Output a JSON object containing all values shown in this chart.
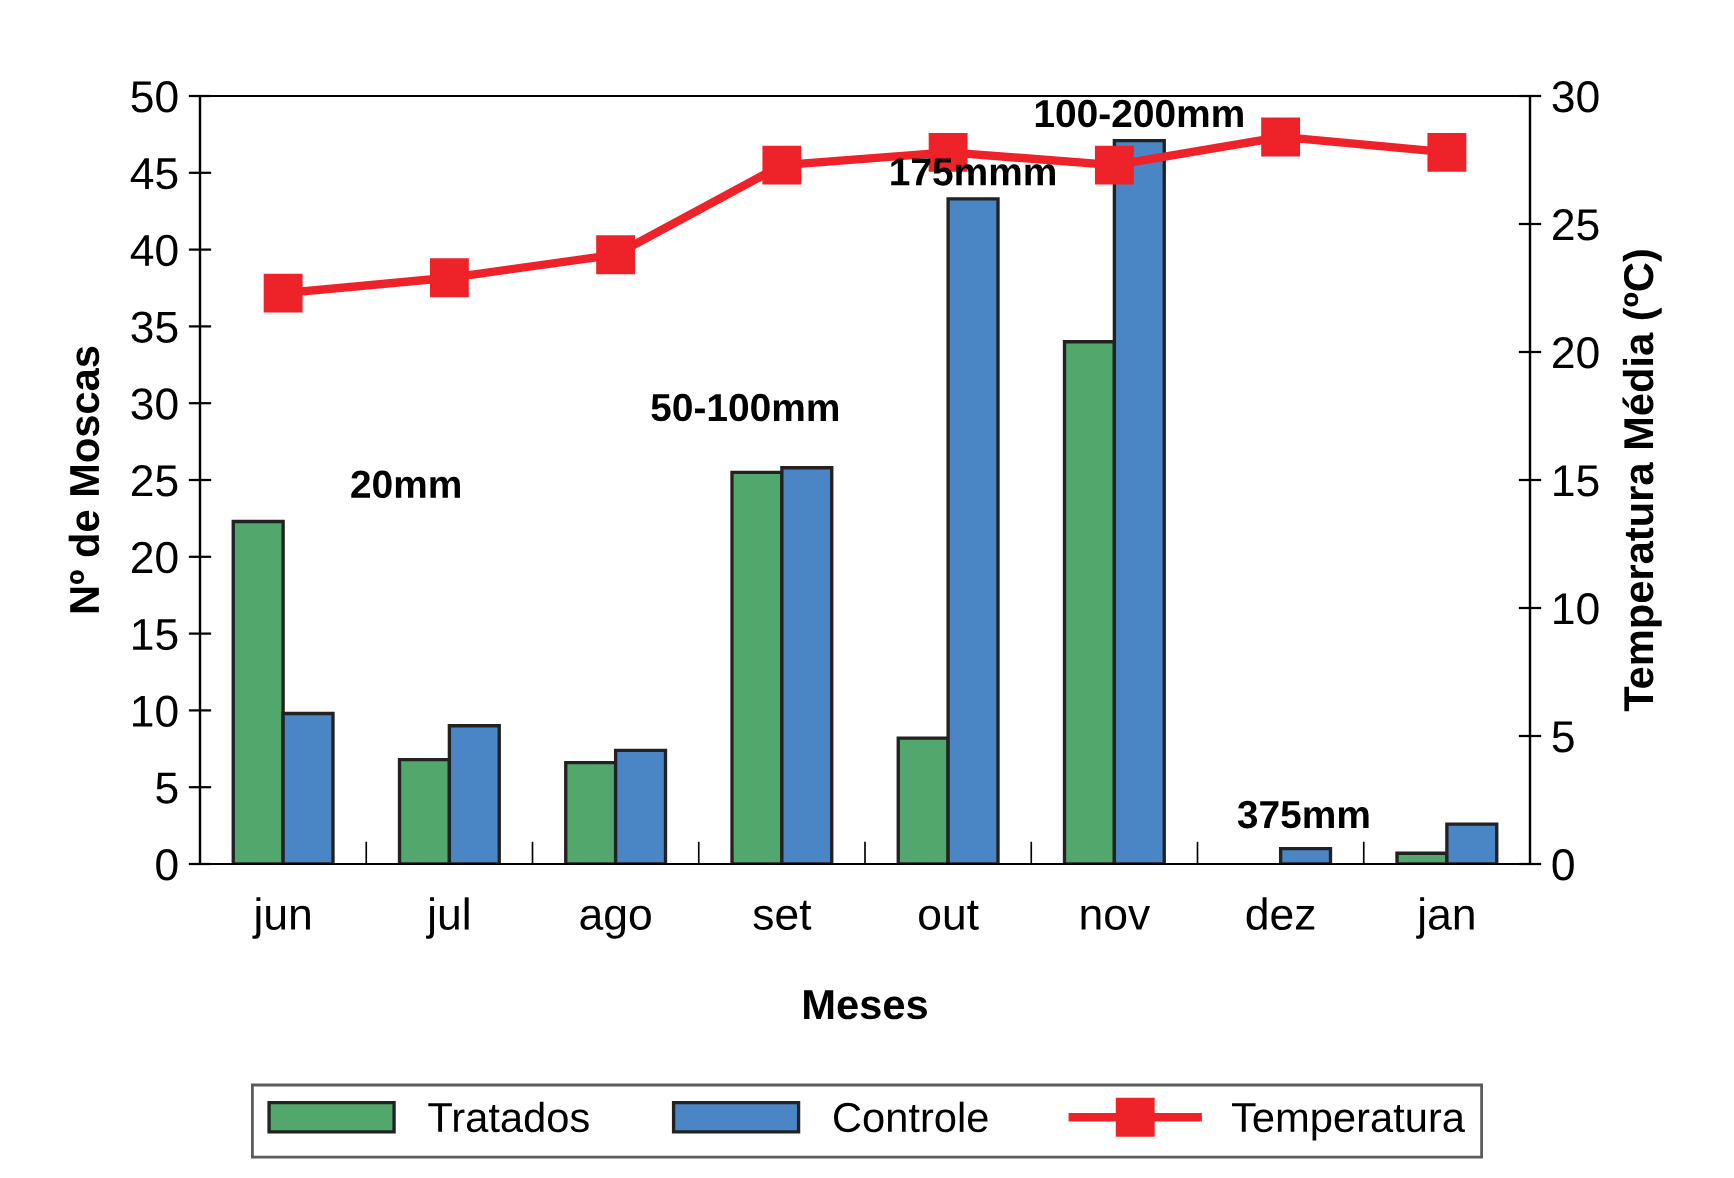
{
  "chart_data": {
    "type": "bar",
    "xlabel": "Meses",
    "ylabel": "Nº de Moscas",
    "y2label": "Temperatura Média (ºC)",
    "categories": [
      "jun",
      "jul",
      "ago",
      "set",
      "out",
      "nov",
      "dez",
      "jan"
    ],
    "series": [
      {
        "name": "Tratados",
        "color": "#52a86c",
        "values": [
          22.3,
          6.8,
          6.6,
          25.5,
          8.2,
          34.0,
          null,
          0.7
        ]
      },
      {
        "name": "Controle",
        "color": "#4a86c5",
        "values": [
          9.8,
          9.0,
          7.4,
          25.8,
          43.3,
          47.1,
          1.0,
          2.6
        ]
      },
      {
        "name": "Temperatura",
        "type": "line",
        "axis": "y2",
        "color": "#ee2229",
        "marker": "square",
        "values": [
          22.3,
          22.9,
          23.8,
          27.3,
          27.8,
          27.3,
          28.4,
          27.8
        ]
      }
    ],
    "ylim": [
      0,
      50
    ],
    "yticks": [
      0,
      5,
      10,
      15,
      20,
      25,
      30,
      35,
      40,
      45,
      50
    ],
    "y2lim": [
      0,
      30
    ],
    "y2ticks": [
      0,
      5,
      10,
      15,
      20,
      25,
      30
    ],
    "annotations": [
      "20mm",
      "50-100mm",
      {
        "text": "175mmm",
        "x": "out",
        "y": 43.3
      },
      {
        "text": "100-200mm",
        "x": "nov",
        "y": 47.1
      },
      "375mm"
    ],
    "legend": "bottom",
    "grid": false
  }
}
